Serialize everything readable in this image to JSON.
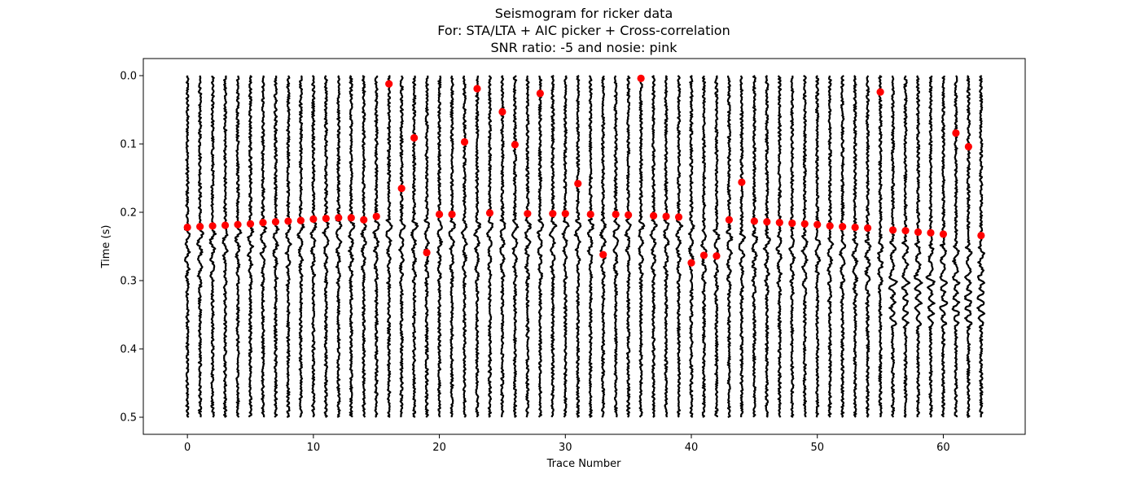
{
  "chart_data": {
    "type": "scatter",
    "title_lines": [
      "Seismogram for ricker data",
      "For: STA/LTA + AIC picker + Cross-correlation",
      "SNR ratio: -5 and nosie: pink"
    ],
    "xlabel": "Trace Number",
    "ylabel": "Time (s)",
    "xlim": [
      -3.5,
      66.5
    ],
    "ylim": [
      0.525,
      -0.025
    ],
    "y_inverted": true,
    "xticks": [
      0,
      10,
      20,
      30,
      40,
      50,
      60
    ],
    "xtick_labels": [
      "0",
      "10",
      "20",
      "30",
      "40",
      "50",
      "60"
    ],
    "yticks": [
      0.0,
      0.1,
      0.2,
      0.3,
      0.4,
      0.5
    ],
    "ytick_labels": [
      "0.0",
      "0.1",
      "0.2",
      "0.3",
      "0.4",
      "0.5"
    ],
    "grid": false,
    "colors": {
      "traces": "#000000",
      "picks": "#ff0000"
    },
    "traces": {
      "count": 64,
      "time_range": [
        0.0,
        0.5
      ],
      "wavelet": "ricker",
      "noise": "pink"
    },
    "picks": {
      "x": [
        0,
        1,
        2,
        3,
        4,
        5,
        6,
        7,
        8,
        9,
        10,
        11,
        12,
        13,
        14,
        15,
        16,
        17,
        18,
        19,
        20,
        21,
        22,
        23,
        24,
        25,
        26,
        27,
        28,
        29,
        30,
        31,
        32,
        33,
        34,
        35,
        36,
        37,
        38,
        39,
        40,
        41,
        42,
        43,
        44,
        45,
        46,
        47,
        48,
        49,
        50,
        51,
        52,
        53,
        54,
        55,
        56,
        57,
        58,
        59,
        60,
        61,
        62,
        63
      ],
      "y": [
        0.222,
        0.221,
        0.22,
        0.219,
        0.218,
        0.217,
        0.215,
        0.214,
        0.213,
        0.212,
        0.21,
        0.209,
        0.208,
        0.208,
        0.211,
        0.206,
        0.012,
        0.165,
        0.091,
        0.259,
        0.203,
        0.203,
        0.097,
        0.019,
        0.201,
        0.053,
        0.101,
        0.202,
        0.026,
        0.202,
        0.202,
        0.158,
        0.203,
        0.262,
        0.203,
        0.204,
        0.004,
        0.205,
        0.206,
        0.207,
        0.274,
        0.263,
        0.264,
        0.211,
        0.156,
        0.213,
        0.214,
        0.215,
        0.216,
        0.217,
        0.218,
        0.22,
        0.221,
        0.222,
        0.223,
        0.024,
        0.226,
        0.227,
        0.229,
        0.23,
        0.232,
        0.084,
        0.104,
        0.234
      ]
    }
  }
}
